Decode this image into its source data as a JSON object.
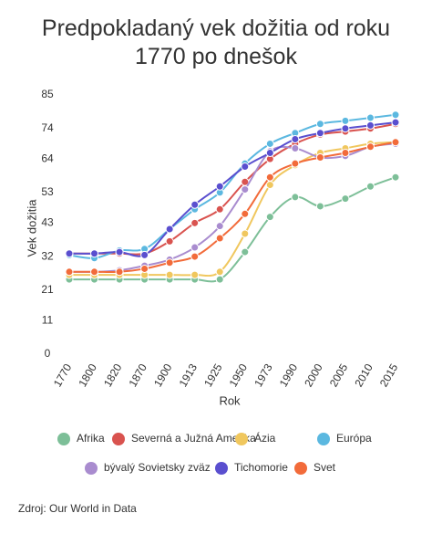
{
  "chart_data": {
    "type": "line",
    "title": "Predpokladaný vek dožitia od roku 1770 po dnešok",
    "x_label": "Rok",
    "y_label": "Vek dožitia",
    "source": "Zdroj: Our World in Data",
    "categories": [
      "1770",
      "1800",
      "1820",
      "1870",
      "1900",
      "1913",
      "1925",
      "1950",
      "1973",
      "1990",
      "2000",
      "2005",
      "2010",
      "2015"
    ],
    "ylim": [
      0,
      85
    ],
    "yticks": [
      0,
      11,
      21,
      32,
      43,
      53,
      64,
      74,
      85
    ],
    "series": [
      {
        "name": "Afrika",
        "color": "#7dbf98",
        "values": [
          24.5,
          24.5,
          24.5,
          24.5,
          24.5,
          24.5,
          24.5,
          33.5,
          45,
          51.5,
          48.5,
          51,
          55,
          58
        ]
      },
      {
        "name": "Severná a Južná Amerika",
        "color": "#d9534f",
        "values": [
          33,
          33,
          33,
          33,
          37,
          43,
          47.5,
          56.5,
          64,
          69,
          72,
          73,
          74,
          75.5
        ]
      },
      {
        "name": "Ázia",
        "color": "#f0c75e",
        "values": [
          26,
          26,
          26,
          26,
          26,
          26,
          27,
          39.5,
          55.5,
          62,
          66,
          67.5,
          69,
          69.5
        ]
      },
      {
        "name": "Európa",
        "color": "#5bb8e0",
        "values": [
          32.5,
          31.5,
          34,
          34.5,
          41,
          47.5,
          53,
          62.5,
          69,
          72.5,
          75.5,
          76.5,
          77.5,
          78.5
        ]
      },
      {
        "name": "bývalý Sovietsky zväz",
        "color": "#a98ccf",
        "values": [
          27,
          27,
          27.5,
          29,
          31,
          35,
          42,
          54,
          66.5,
          67.5,
          64.5,
          65,
          68,
          69
        ]
      },
      {
        "name": "Tichomorie",
        "color": "#5a4fcf",
        "values": [
          33,
          33,
          33.5,
          32.5,
          41,
          49,
          55,
          61.5,
          66,
          70.5,
          72.5,
          74,
          75,
          76
        ]
      },
      {
        "name": "Svet",
        "color": "#f26b3a",
        "values": [
          27,
          27,
          27,
          28,
          30,
          32,
          38,
          46,
          58,
          62.5,
          64.5,
          66,
          68,
          69.5
        ]
      }
    ]
  }
}
